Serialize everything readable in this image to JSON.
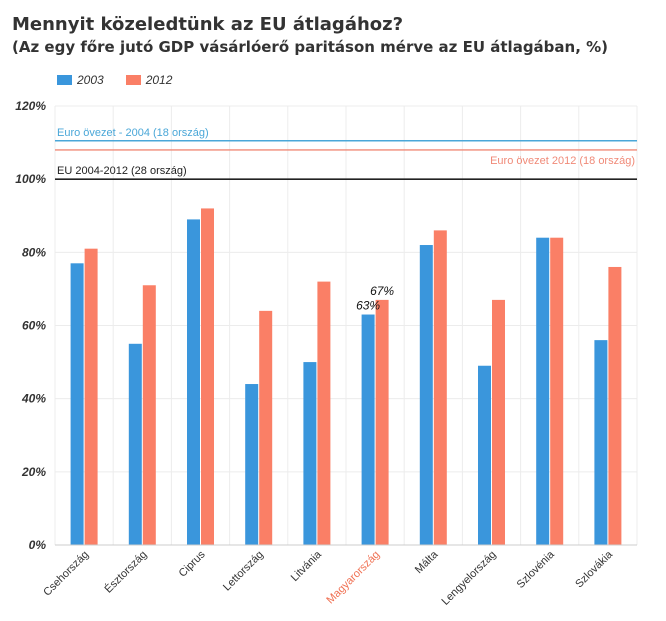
{
  "title": "Mennyit közeledtünk az EU átlagához?",
  "subtitle": "(Az egy főre jutó GDP vásárlóerő paritáson mérve az EU átlagában, %)",
  "colors": {
    "s2003": "#3a96dc",
    "s2012": "#fa7f66",
    "highlight_label": "#f07052",
    "ref_2004": "#4aa7d8",
    "ref_2012": "#f08a78",
    "ref_eu": "#222222",
    "axis_text": "#333333",
    "grid": "#ececec"
  },
  "chart_data": {
    "type": "bar",
    "categories": [
      "Csehország",
      "Észtország",
      "Ciprus",
      "Lettország",
      "Litvánia",
      "Magyarország",
      "Málta",
      "Lengyelország",
      "Szlovénia",
      "Szlovákia"
    ],
    "highlight_category": "Magyarország",
    "series": [
      {
        "name": "2003",
        "values": [
          77,
          55,
          89,
          44,
          50,
          63,
          82,
          49,
          84,
          56
        ]
      },
      {
        "name": "2012",
        "values": [
          81,
          71,
          92,
          64,
          72,
          67,
          86,
          67,
          84,
          76
        ]
      }
    ],
    "data_labels": [
      {
        "category": "Magyarország",
        "series": "2003",
        "text": "63%"
      },
      {
        "category": "Magyarország",
        "series": "2012",
        "text": "67%"
      }
    ],
    "reference_lines": [
      {
        "key": "ref_2004",
        "value": 110.5,
        "label": "Euro övezet - 2004  (18 ország)",
        "align": "left"
      },
      {
        "key": "ref_2012",
        "value": 108,
        "label": "Euro övezet 2012 (18 ország)",
        "align": "right"
      },
      {
        "key": "ref_eu",
        "value": 100,
        "label": "EU 2004-2012 (28 ország)",
        "align": "left"
      }
    ],
    "y_ticks": [
      "0%",
      "20%",
      "40%",
      "60%",
      "80%",
      "100%",
      "120%"
    ],
    "ylim": [
      0,
      120
    ],
    "grid": true,
    "legend": "top-left"
  }
}
